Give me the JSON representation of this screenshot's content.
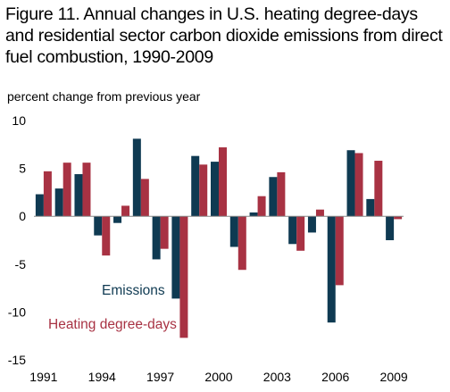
{
  "chart_data": {
    "type": "bar",
    "title": "Figure 11. Annual changes in U.S. heating degree-days and residential sector carbon dioxide emissions from direct fuel combustion, 1990-2009",
    "ylabel": "percent change from previous  year",
    "xlabel": "",
    "ylim": [
      -15,
      10
    ],
    "yticks": [
      10,
      5,
      0,
      -5,
      -10,
      -15
    ],
    "categories": [
      1991,
      1992,
      1993,
      1994,
      1995,
      1996,
      1997,
      1998,
      1999,
      2000,
      2001,
      2002,
      2003,
      2004,
      2005,
      2006,
      2007,
      2008,
      2009
    ],
    "xtick_labels": [
      "1991",
      "1994",
      "1997",
      "2000",
      "2003",
      "2006",
      "2009"
    ],
    "series": [
      {
        "name": "Emissions",
        "color": "#0f3a52",
        "values": [
          2.3,
          2.9,
          4.4,
          -2.0,
          -0.7,
          8.1,
          -4.5,
          -8.6,
          6.3,
          5.7,
          -3.2,
          0.4,
          4.1,
          -2.9,
          -1.7,
          -11.1,
          6.9,
          1.8,
          -2.5
        ]
      },
      {
        "name": "Heating degree-days",
        "color": "#a83243",
        "values": [
          4.7,
          5.6,
          5.6,
          -4.1,
          1.1,
          3.9,
          -3.4,
          -12.7,
          5.4,
          7.2,
          -5.6,
          2.1,
          4.6,
          -3.6,
          0.7,
          -7.2,
          6.6,
          5.8,
          -0.3
        ]
      }
    ],
    "legend": {
      "placement": "inside-bottom-left",
      "labels": [
        "Emissions",
        "Heating degree-days"
      ]
    },
    "grid": false
  }
}
